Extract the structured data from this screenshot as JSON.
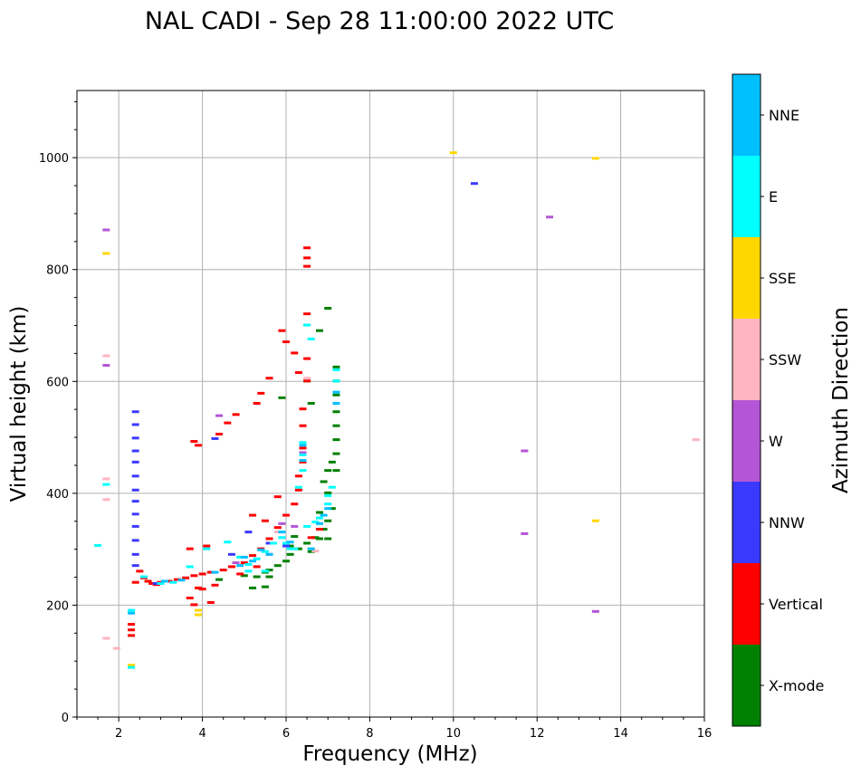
{
  "chart_data": {
    "type": "scatter",
    "title": "NAL CADI - Sep 28 11:00:00 2022 UTC",
    "xlabel": "Frequency (MHz)",
    "ylabel": "Virtual height (km)",
    "xlim": [
      1,
      16
    ],
    "ylim": [
      0,
      1120
    ],
    "xticks": [
      2,
      4,
      6,
      8,
      10,
      12,
      14,
      16
    ],
    "yticks": [
      0,
      200,
      400,
      600,
      800,
      1000
    ],
    "grid": true,
    "colorbar": {
      "label": "Azimuth Direction",
      "categories": [
        "X-mode",
        "Vertical",
        "NNW",
        "W",
        "SSW",
        "SSE",
        "E",
        "NNE"
      ],
      "colors": [
        "#008000",
        "#ff0000",
        "#3a3aff",
        "#b455d6",
        "#ffb5c0",
        "#ffd700",
        "#00ffff",
        "#00bfff"
      ]
    },
    "series": [
      {
        "name": "X-mode",
        "points": [
          [
            5.3,
            250
          ],
          [
            5.5,
            258
          ],
          [
            5.6,
            262
          ],
          [
            5.8,
            270
          ],
          [
            6.0,
            278
          ],
          [
            6.1,
            290
          ],
          [
            6.3,
            300
          ],
          [
            6.5,
            310
          ],
          [
            6.7,
            320
          ],
          [
            6.9,
            335
          ],
          [
            7.0,
            350
          ],
          [
            7.1,
            372
          ],
          [
            7.2,
            440
          ],
          [
            7.2,
            470
          ],
          [
            7.2,
            495
          ],
          [
            7.2,
            520
          ],
          [
            7.2,
            545
          ],
          [
            7.2,
            575
          ],
          [
            7.2,
            600
          ],
          [
            7.2,
            625
          ],
          [
            7.0,
            730
          ],
          [
            6.8,
            690
          ],
          [
            6.5,
            600
          ],
          [
            6.6,
            560
          ],
          [
            6.9,
            420
          ],
          [
            7.0,
            400
          ],
          [
            6.8,
            365
          ],
          [
            5.5,
            232
          ],
          [
            5.2,
            230
          ],
          [
            4.4,
            245
          ],
          [
            6.1,
            305
          ],
          [
            6.2,
            322
          ],
          [
            7.0,
            318
          ],
          [
            6.8,
            318
          ],
          [
            5.9,
            570
          ],
          [
            7.1,
            455
          ],
          [
            7.0,
            440
          ],
          [
            6.6,
            295
          ],
          [
            5.6,
            250
          ],
          [
            5.0,
            252
          ]
        ]
      },
      {
        "name": "Vertical",
        "points": [
          [
            2.3,
            155
          ],
          [
            2.3,
            165
          ],
          [
            2.3,
            145
          ],
          [
            2.4,
            240
          ],
          [
            2.5,
            260
          ],
          [
            2.6,
            248
          ],
          [
            2.7,
            242
          ],
          [
            2.8,
            238
          ],
          [
            2.9,
            236
          ],
          [
            3.0,
            240
          ],
          [
            3.2,
            242
          ],
          [
            3.4,
            245
          ],
          [
            3.6,
            248
          ],
          [
            3.8,
            252
          ],
          [
            4.0,
            255
          ],
          [
            4.2,
            258
          ],
          [
            4.5,
            262
          ],
          [
            4.7,
            268
          ],
          [
            5.0,
            275
          ],
          [
            5.2,
            288
          ],
          [
            5.4,
            300
          ],
          [
            5.6,
            318
          ],
          [
            5.8,
            338
          ],
          [
            6.0,
            360
          ],
          [
            6.2,
            380
          ],
          [
            6.3,
            405
          ],
          [
            6.3,
            430
          ],
          [
            6.4,
            455
          ],
          [
            6.4,
            480
          ],
          [
            6.4,
            520
          ],
          [
            6.4,
            550
          ],
          [
            6.5,
            600
          ],
          [
            6.5,
            640
          ],
          [
            6.5,
            700
          ],
          [
            6.5,
            720
          ],
          [
            6.5,
            805
          ],
          [
            6.5,
            820
          ],
          [
            6.5,
            838
          ],
          [
            6.3,
            615
          ],
          [
            6.2,
            650
          ],
          [
            6.0,
            670
          ],
          [
            5.9,
            690
          ],
          [
            5.6,
            605
          ],
          [
            5.4,
            578
          ],
          [
            5.3,
            560
          ],
          [
            4.8,
            540
          ],
          [
            4.6,
            525
          ],
          [
            4.4,
            505
          ],
          [
            3.8,
            492
          ],
          [
            3.9,
            485
          ],
          [
            3.7,
            300
          ],
          [
            4.1,
            305
          ],
          [
            5.2,
            360
          ],
          [
            5.5,
            350
          ],
          [
            5.3,
            268
          ],
          [
            4.9,
            255
          ],
          [
            4.0,
            228
          ],
          [
            3.7,
            212
          ],
          [
            3.8,
            200
          ],
          [
            4.2,
            204
          ],
          [
            3.9,
            230
          ],
          [
            4.3,
            235
          ],
          [
            6.8,
            335
          ],
          [
            6.6,
            320
          ],
          [
            5.8,
            393
          ]
        ]
      },
      {
        "name": "NNW",
        "points": [
          [
            2.4,
            545
          ],
          [
            2.4,
            522
          ],
          [
            2.4,
            498
          ],
          [
            2.4,
            475
          ],
          [
            2.4,
            455
          ],
          [
            2.4,
            430
          ],
          [
            2.4,
            405
          ],
          [
            2.4,
            385
          ],
          [
            2.4,
            362
          ],
          [
            2.4,
            340
          ],
          [
            2.4,
            315
          ],
          [
            2.4,
            290
          ],
          [
            2.4,
            270
          ],
          [
            10.5,
            953
          ],
          [
            4.3,
            497
          ],
          [
            5.1,
            330
          ],
          [
            5.6,
            310
          ],
          [
            4.7,
            290
          ],
          [
            2.9,
            238
          ],
          [
            6.0,
            305
          ]
        ]
      },
      {
        "name": "W",
        "points": [
          [
            1.7,
            870
          ],
          [
            1.7,
            628
          ],
          [
            11.7,
            475
          ],
          [
            11.7,
            327
          ],
          [
            13.4,
            188
          ],
          [
            12.3,
            893
          ],
          [
            6.4,
            472
          ],
          [
            5.6,
            290
          ],
          [
            4.8,
            275
          ],
          [
            6.2,
            340
          ],
          [
            5.9,
            345
          ],
          [
            4.4,
            538
          ]
        ]
      },
      {
        "name": "SSW",
        "points": [
          [
            1.7,
            645
          ],
          [
            1.7,
            425
          ],
          [
            1.7,
            388
          ],
          [
            1.7,
            140
          ],
          [
            1.95,
            122
          ],
          [
            15.8,
            495
          ],
          [
            5.8,
            330
          ],
          [
            6.5,
            605
          ],
          [
            2.3,
            88
          ],
          [
            6.7,
            296
          ]
        ]
      },
      {
        "name": "SSE",
        "points": [
          [
            1.7,
            828
          ],
          [
            10.0,
            1008
          ],
          [
            13.4,
            998
          ],
          [
            13.4,
            350
          ],
          [
            3.9,
            190
          ],
          [
            3.9,
            182
          ],
          [
            2.3,
            92
          ],
          [
            6.6,
            300
          ]
        ]
      },
      {
        "name": "E",
        "points": [
          [
            1.7,
            415
          ],
          [
            1.5,
            306
          ],
          [
            2.3,
            190
          ],
          [
            2.3,
            88
          ],
          [
            2.6,
            250
          ],
          [
            3.0,
            238
          ],
          [
            3.3,
            240
          ],
          [
            3.7,
            268
          ],
          [
            4.1,
            300
          ],
          [
            4.6,
            312
          ],
          [
            5.1,
            272
          ],
          [
            5.3,
            282
          ],
          [
            5.5,
            295
          ],
          [
            5.7,
            310
          ],
          [
            5.9,
            320
          ],
          [
            6.0,
            310
          ],
          [
            6.2,
            300
          ],
          [
            6.5,
            340
          ],
          [
            6.7,
            348
          ],
          [
            6.8,
            355
          ],
          [
            7.0,
            380
          ],
          [
            7.0,
            395
          ],
          [
            7.1,
            410
          ],
          [
            6.4,
            468
          ],
          [
            6.4,
            490
          ],
          [
            6.4,
            440
          ],
          [
            6.5,
            700
          ],
          [
            6.6,
            675
          ],
          [
            7.2,
            620
          ],
          [
            7.2,
            600
          ],
          [
            6.3,
            410
          ],
          [
            5.5,
            260
          ],
          [
            4.9,
            285
          ],
          [
            5.1,
            260
          ],
          [
            6.1,
            300
          ]
        ]
      },
      {
        "name": "NNE",
        "points": [
          [
            2.3,
            185
          ],
          [
            3.1,
            242
          ],
          [
            3.5,
            244
          ],
          [
            4.3,
            258
          ],
          [
            4.9,
            270
          ],
          [
            5.2,
            278
          ],
          [
            5.6,
            290
          ],
          [
            5.9,
            330
          ],
          [
            6.1,
            312
          ],
          [
            6.4,
            458
          ],
          [
            6.4,
            485
          ],
          [
            6.6,
            300
          ],
          [
            6.9,
            360
          ],
          [
            7.0,
            372
          ],
          [
            7.2,
            580
          ],
          [
            7.2,
            560
          ],
          [
            6.8,
            345
          ],
          [
            5.4,
            298
          ],
          [
            5.0,
            285
          ]
        ]
      }
    ]
  }
}
